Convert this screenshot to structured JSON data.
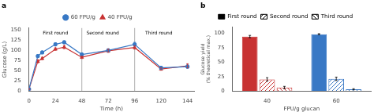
{
  "chart_data": [
    {
      "type": "line",
      "title": "a",
      "x": [
        0,
        8,
        12,
        24,
        32,
        48,
        72,
        96,
        120,
        144
      ],
      "series": [
        {
          "name": "60 FPU/g",
          "color": "#3878c5",
          "marker": "circle",
          "values": [
            5,
            86,
            95,
            115,
            120,
            90,
            100,
            115,
            57,
            60
          ],
          "errors": [
            1,
            3,
            3,
            4,
            3,
            4,
            4,
            5,
            4,
            4
          ]
        },
        {
          "name": "40 FPU/g",
          "color": "#c83232",
          "marker": "triangle",
          "values": [
            5,
            73,
            80,
            103,
            108,
            83,
            99,
            107,
            54,
            62
          ],
          "errors": [
            1,
            4,
            3,
            3,
            4,
            3,
            4,
            4,
            3,
            5
          ]
        }
      ],
      "xlabel": "Time (h)",
      "ylabel": "Glucose (g/L)",
      "xlim": [
        0,
        150
      ],
      "ylim": [
        0,
        155
      ],
      "xticks": [
        0,
        24,
        48,
        72,
        96,
        120,
        144
      ],
      "yticks": [
        0,
        25,
        50,
        75,
        100,
        125,
        150
      ],
      "vlines": [
        48,
        96
      ],
      "annotations": [
        {
          "text": "First round",
          "x": 24,
          "y": 148
        },
        {
          "text": "Second round",
          "x": 67,
          "y": 148
        },
        {
          "text": "Third round",
          "x": 118,
          "y": 148
        }
      ],
      "legend": "top",
      "grid": false
    },
    {
      "type": "bar",
      "title": "b",
      "categories": [
        "40",
        "60"
      ],
      "series": [
        {
          "name": "First round",
          "colors": [
            "#c83232",
            "#3878c5"
          ],
          "values": [
            94,
            98
          ],
          "errors": [
            2,
            1
          ]
        },
        {
          "name": "Second round",
          "colors": [
            "#c83232",
            "#3878c5"
          ],
          "values": [
            20,
            21
          ],
          "errors": [
            3,
            3
          ]
        },
        {
          "name": "Third round",
          "colors": [
            "#c83232",
            "#3878c5"
          ],
          "values": [
            6,
            3
          ],
          "errors": [
            2,
            1
          ]
        }
      ],
      "xlabel": "FPU/g glucan",
      "ylabel": "Glucose yield\n(% theoretical max.)",
      "ylim": [
        0,
        110
      ],
      "yticks": [
        0,
        25,
        50,
        75,
        100
      ],
      "legend": "top",
      "grid": false
    }
  ]
}
